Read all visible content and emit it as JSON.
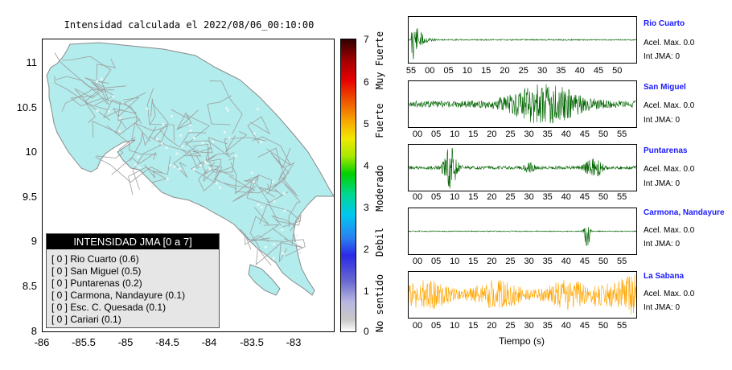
{
  "map": {
    "title": "Intensidad calculada el 2022/08/06_00:10:00",
    "y_ticks": [
      "11",
      "10.5",
      "10",
      "9.5",
      "9",
      "8.5",
      "8"
    ],
    "x_ticks": [
      "-86",
      "-85.5",
      "-85",
      "-84.5",
      "-84",
      "-83.5",
      "-83"
    ],
    "fill_color": "#b2ecec",
    "border_color": "#8a8a8a"
  },
  "legend": {
    "header": "INTENSIDAD JMA [0 a 7]",
    "items": [
      "[ 0 ]  Rio Cuarto (0.6)",
      "[ 0 ]  San Miguel (0.5)",
      "[ 0 ]  Puntarenas (0.2)",
      "[ 0 ]  Carmona, Nandayure (0.1)",
      "[ 0 ]  Esc. C. Quesada (0.1)",
      "[ 0 ]  Cariari (0.1)"
    ]
  },
  "colorbar": {
    "numbers": [
      "7",
      "6",
      "5",
      "4",
      "3",
      "2",
      "1",
      "0"
    ],
    "words": [
      "Muy Fuerte",
      "Fuerte",
      "Moderado",
      "Debil",
      "No sentido"
    ]
  },
  "panels": [
    {
      "station": "Rio Cuarto",
      "accel": "Acel. Max. 0.0",
      "jma": "Int JMA: 0",
      "color": "#006400",
      "ticks": [
        "55",
        "00",
        "05",
        "10",
        "15",
        "20",
        "25",
        "30",
        "35",
        "40",
        "45",
        "50"
      ]
    },
    {
      "station": "San Miguel",
      "accel": "Acel. Max. 0.0",
      "jma": "Int JMA: 0",
      "color": "#006400",
      "ticks": [
        "00",
        "05",
        "10",
        "15",
        "20",
        "25",
        "30",
        "35",
        "40",
        "45",
        "50",
        "55"
      ]
    },
    {
      "station": "Puntarenas",
      "accel": "Acel. Max. 0.0",
      "jma": "Int JMA: 0",
      "color": "#006400",
      "ticks": [
        "00",
        "05",
        "10",
        "15",
        "20",
        "25",
        "30",
        "35",
        "40",
        "45",
        "50",
        "55"
      ]
    },
    {
      "station": "Carmona, Nandayure",
      "accel": "Acel. Max. 0.0",
      "jma": "Int JMA: 0",
      "color": "#006400",
      "ticks": [
        "00",
        "05",
        "10",
        "15",
        "20",
        "25",
        "30",
        "35",
        "40",
        "45",
        "50",
        "55"
      ]
    },
    {
      "station": "La Sabana",
      "accel": "Acel. Max. 0.0",
      "jma": "Int JMA: 0",
      "color": "#ffa500",
      "ticks": [
        "00",
        "05",
        "10",
        "15",
        "20",
        "25",
        "30",
        "35",
        "40",
        "45",
        "50",
        "55"
      ]
    }
  ],
  "xaxis_label": "Tiempo (s)"
}
